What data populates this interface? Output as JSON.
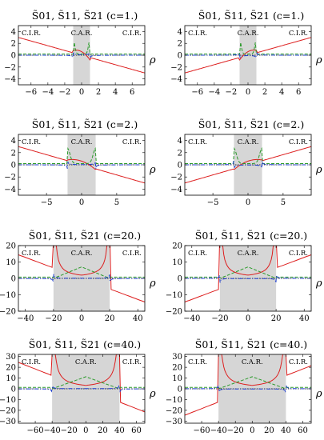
{
  "colors": {
    "S01": "#dd1e1e",
    "S11": "#2a9a2a",
    "S21": "#1f3fcf",
    "shade": "#d6d6d6",
    "axis": "#000000"
  },
  "chart_data": [
    {
      "type": "line",
      "title": "S̃01, S̃11, S̃21 (c=1.)",
      "c": 1,
      "xlabel": "ρ",
      "xlim": [
        -7.5,
        7.5
      ],
      "ylim": [
        -5,
        5
      ],
      "xticks": [
        -6,
        -4,
        -2,
        0,
        2,
        4,
        6
      ],
      "yticks": [
        -4,
        -2,
        0,
        2,
        4
      ],
      "regions": [
        "C.I.R.",
        "C.A.R.",
        "C.I.R."
      ],
      "variant": "left"
    },
    {
      "type": "line",
      "title": "S̃01, S̃11, S̃21 (c=1.)",
      "c": 1,
      "xlabel": "ρ",
      "xlim": [
        -7.5,
        7.5
      ],
      "ylim": [
        -5,
        5
      ],
      "xticks": [
        -6,
        -4,
        -2,
        0,
        2,
        4,
        6
      ],
      "yticks": [
        -4,
        -2,
        0,
        2,
        4
      ],
      "regions": [
        "C.I.R.",
        "C.A.R.",
        "C.I.R."
      ],
      "variant": "right"
    },
    {
      "type": "line",
      "title": "S̃01, S̃11, S̃21 (c=2.)",
      "c": 2,
      "xlabel": "ρ",
      "xlim": [
        -9,
        9
      ],
      "ylim": [
        -5,
        5
      ],
      "xticks": [
        -5,
        0,
        5
      ],
      "yticks": [
        -4,
        -2,
        0,
        2,
        4
      ],
      "regions": [
        "C.I.R.",
        "C.A.R.",
        "C.I.R."
      ],
      "variant": "left"
    },
    {
      "type": "line",
      "title": "S̃01, S̃11, S̃21 (c=2.)",
      "c": 2,
      "xlabel": "ρ",
      "xlim": [
        -9,
        9
      ],
      "ylim": [
        -5,
        5
      ],
      "xticks": [
        -5,
        0,
        5
      ],
      "yticks": [
        -4,
        -2,
        0,
        2,
        4
      ],
      "regions": [
        "C.I.R.",
        "C.A.R.",
        "C.I.R."
      ],
      "variant": "right"
    },
    {
      "type": "line",
      "title": "S̃01, S̃11, S̃21 (c=20.)",
      "c": 20,
      "xlabel": "ρ",
      "xlim": [
        -45,
        45
      ],
      "ylim": [
        -20,
        20
      ],
      "xticks": [
        -40,
        -20,
        0,
        20,
        40
      ],
      "yticks": [
        -20,
        -10,
        0,
        10,
        20
      ],
      "regions": [
        "C.I.R.",
        "C.A.R.",
        "C.I.R."
      ],
      "variant": "left"
    },
    {
      "type": "line",
      "title": "S̃01, S̃11, S̃21 (c=20.)",
      "c": 20,
      "xlabel": "ρ",
      "xlim": [
        -45,
        45
      ],
      "ylim": [
        -20,
        20
      ],
      "xticks": [
        -40,
        -20,
        0,
        20,
        40
      ],
      "yticks": [
        -20,
        -10,
        0,
        10,
        20
      ],
      "regions": [
        "C.I.R.",
        "C.A.R.",
        "C.I.R."
      ],
      "variant": "right"
    },
    {
      "type": "line",
      "title": "S̃01, S̃11, S̃21 (c=40.)",
      "c": 40,
      "xlabel": "ρ",
      "xlim": [
        -80,
        70
      ],
      "ylim": [
        -32,
        32
      ],
      "xticks": [
        -60,
        -40,
        -20,
        0,
        20,
        40,
        60
      ],
      "yticks": [
        -30,
        -20,
        -10,
        0,
        10,
        20,
        30
      ],
      "regions": [
        "C.I.R.",
        "C.A.R.",
        "C.I.R."
      ],
      "variant": "left"
    },
    {
      "type": "line",
      "title": "S̃01, S̃11, S̃21 (c=40.)",
      "c": 40,
      "xlabel": "ρ",
      "xlim": [
        -80,
        70
      ],
      "ylim": [
        -32,
        32
      ],
      "xticks": [
        -60,
        -40,
        -20,
        0,
        20,
        40,
        60
      ],
      "yticks": [
        -30,
        -20,
        -10,
        0,
        10,
        20,
        30
      ],
      "regions": [
        "C.I.R.",
        "C.A.R.",
        "C.I.R."
      ],
      "variant": "right"
    }
  ]
}
